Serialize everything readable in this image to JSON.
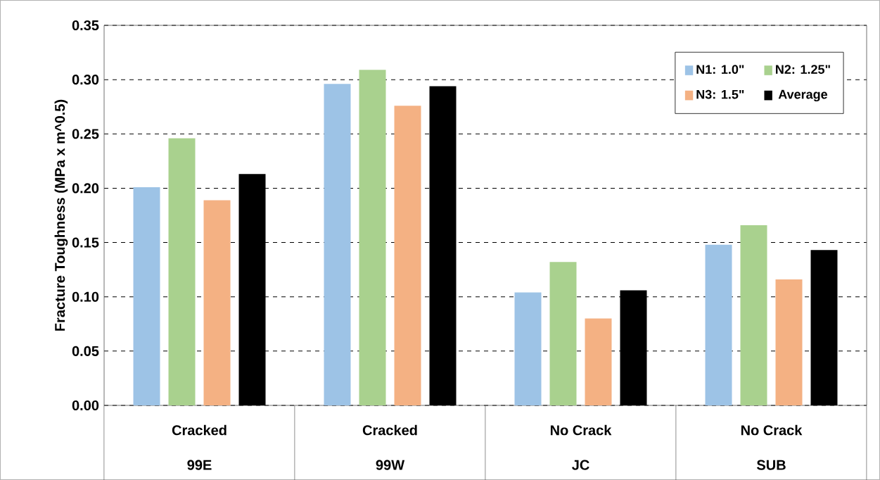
{
  "chart_data": {
    "type": "bar",
    "ylabel": "Fracture Toughness  (MPa x m^0.5)",
    "categories": [
      "99E",
      "99W",
      "JC",
      "SUB"
    ],
    "annotations": [
      "Cracked",
      "Cracked",
      "No Crack",
      "No Crack"
    ],
    "series": [
      {
        "name": "N1: 1.0\"",
        "color": "#9dc3e6",
        "values": [
          0.201,
          0.296,
          0.104,
          0.148
        ]
      },
      {
        "name": "N2: 1.25\"",
        "color": "#a9d18e",
        "values": [
          0.246,
          0.309,
          0.132,
          0.166
        ]
      },
      {
        "name": "N3: 1.5\"",
        "color": "#f4b183",
        "values": [
          0.189,
          0.276,
          0.08,
          0.116
        ]
      },
      {
        "name": "Average",
        "color": "#000000",
        "values": [
          0.213,
          0.294,
          0.106,
          0.143
        ]
      }
    ],
    "ylim": [
      0,
      0.35
    ],
    "yticks": [
      {
        "value": 0,
        "label": "0.00"
      },
      {
        "value": 0.05,
        "label": "0.05"
      },
      {
        "value": 0.1,
        "label": "0.10"
      },
      {
        "value": 0.15,
        "label": "0.15"
      },
      {
        "value": 0.2,
        "label": "0.20"
      },
      {
        "value": 0.25,
        "label": "0.25"
      },
      {
        "value": 0.3,
        "label": "0.30"
      },
      {
        "value": 0.35,
        "label": "0.35"
      }
    ],
    "grid": "y",
    "legend": "top right"
  }
}
